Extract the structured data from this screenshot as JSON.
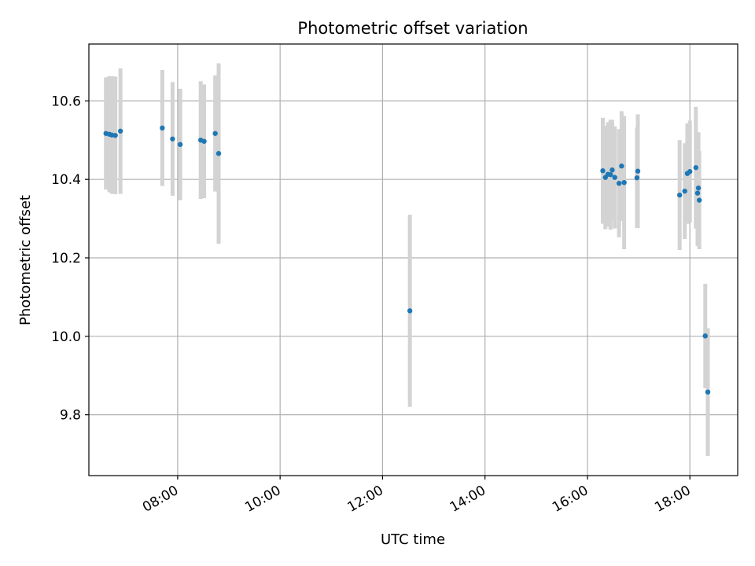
{
  "chart_data": {
    "type": "scatter",
    "title": "Photometric offset variation",
    "xlabel": "UTC time",
    "ylabel": "Photometric offset",
    "x_axis_type": "time",
    "x_range": [
      "06:16",
      "18:56"
    ],
    "ylim": [
      9.645,
      10.745
    ],
    "x_ticks": [
      "08:00",
      "10:00",
      "12:00",
      "14:00",
      "16:00",
      "18:00"
    ],
    "y_ticks": [
      9.8,
      10.0,
      10.2,
      10.4,
      10.6
    ],
    "y_tick_labels": [
      "9.8",
      "10.0",
      "10.2",
      "10.4",
      "10.6"
    ],
    "grid": true,
    "colors": {
      "point": "#1f77b4",
      "errorbar": "#d3d3d3",
      "grid": "#b0b0b0"
    },
    "points": [
      {
        "t": "06:36",
        "y": 10.517,
        "err": 0.143
      },
      {
        "t": "06:40",
        "y": 10.515,
        "err": 0.148
      },
      {
        "t": "06:43",
        "y": 10.513,
        "err": 0.15
      },
      {
        "t": "06:47",
        "y": 10.512,
        "err": 0.15
      },
      {
        "t": "06:53",
        "y": 10.523,
        "err": 0.16
      },
      {
        "t": "07:42",
        "y": 10.531,
        "err": 0.148
      },
      {
        "t": "07:54",
        "y": 10.503,
        "err": 0.145
      },
      {
        "t": "08:03",
        "y": 10.489,
        "err": 0.142
      },
      {
        "t": "08:27",
        "y": 10.5,
        "err": 0.15
      },
      {
        "t": "08:31",
        "y": 10.497,
        "err": 0.145
      },
      {
        "t": "08:44",
        "y": 10.517,
        "err": 0.148
      },
      {
        "t": "08:48",
        "y": 10.466,
        "err": 0.23
      },
      {
        "t": "12:32",
        "y": 10.065,
        "err": 0.245
      },
      {
        "t": "16:18",
        "y": 10.422,
        "err": 0.135
      },
      {
        "t": "16:21",
        "y": 10.405,
        "err": 0.132
      },
      {
        "t": "16:24",
        "y": 10.413,
        "err": 0.133
      },
      {
        "t": "16:27",
        "y": 10.412,
        "err": 0.14
      },
      {
        "t": "16:29",
        "y": 10.424,
        "err": 0.128
      },
      {
        "t": "16:32",
        "y": 10.405,
        "err": 0.13
      },
      {
        "t": "16:37",
        "y": 10.39,
        "err": 0.138
      },
      {
        "t": "16:40",
        "y": 10.434,
        "err": 0.14
      },
      {
        "t": "16:43",
        "y": 10.392,
        "err": 0.17
      },
      {
        "t": "16:58",
        "y": 10.404,
        "err": 0.128
      },
      {
        "t": "16:59",
        "y": 10.421,
        "err": 0.145
      },
      {
        "t": "17:48",
        "y": 10.36,
        "err": 0.14
      },
      {
        "t": "17:54",
        "y": 10.37,
        "err": 0.122
      },
      {
        "t": "17:57",
        "y": 10.415,
        "err": 0.128
      },
      {
        "t": "18:00",
        "y": 10.42,
        "err": 0.13
      },
      {
        "t": "18:07",
        "y": 10.43,
        "err": 0.155
      },
      {
        "t": "18:09",
        "y": 10.365,
        "err": 0.135
      },
      {
        "t": "18:10",
        "y": 10.378,
        "err": 0.142
      },
      {
        "t": "18:11",
        "y": 10.347,
        "err": 0.125
      },
      {
        "t": "18:18",
        "y": 10.001,
        "err": 0.133
      },
      {
        "t": "18:21",
        "y": 9.858,
        "err": 0.163
      }
    ]
  }
}
